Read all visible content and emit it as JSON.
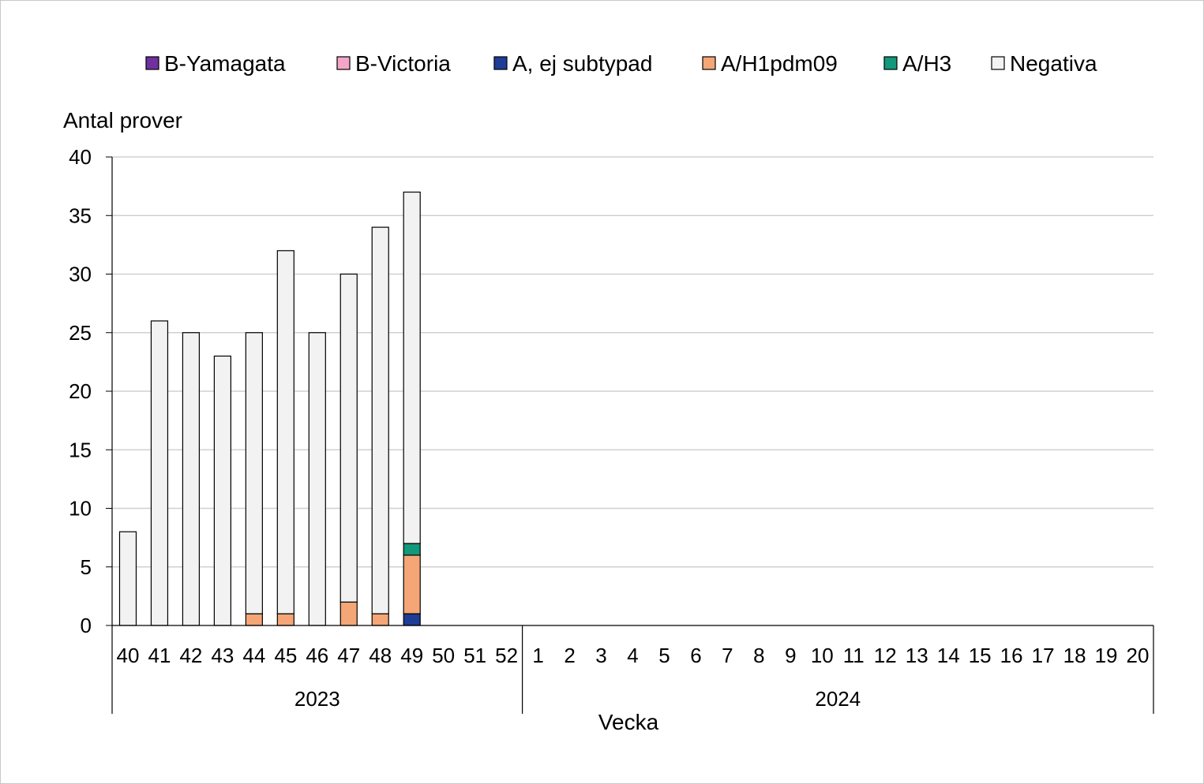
{
  "chart_data": {
    "type": "bar",
    "stacked": true,
    "ylabel": "Antal prover",
    "xlabel": "Vecka",
    "ylim": [
      0,
      40
    ],
    "yticks": [
      0,
      5,
      10,
      15,
      20,
      25,
      30,
      35,
      40
    ],
    "grid": true,
    "legend_position": "top",
    "categories": [
      "40",
      "41",
      "42",
      "43",
      "44",
      "45",
      "46",
      "47",
      "48",
      "49",
      "50",
      "51",
      "52",
      "1",
      "2",
      "3",
      "4",
      "5",
      "6",
      "7",
      "8",
      "9",
      "10",
      "11",
      "12",
      "13",
      "14",
      "15",
      "16",
      "17",
      "18",
      "19",
      "20"
    ],
    "groups": [
      {
        "label": "2023",
        "count": 13
      },
      {
        "label": "2024",
        "count": 20
      }
    ],
    "series": [
      {
        "name": "B-Yamagata",
        "color": "#7030a0",
        "values": [
          0,
          0,
          0,
          0,
          0,
          0,
          0,
          0,
          0,
          0,
          null,
          null,
          null,
          null,
          null,
          null,
          null,
          null,
          null,
          null,
          null,
          null,
          null,
          null,
          null,
          null,
          null,
          null,
          null,
          null,
          null,
          null,
          null
        ]
      },
      {
        "name": "B-Victoria",
        "color": "#f4a6c8",
        "values": [
          0,
          0,
          0,
          0,
          0,
          0,
          0,
          0,
          0,
          0,
          null,
          null,
          null,
          null,
          null,
          null,
          null,
          null,
          null,
          null,
          null,
          null,
          null,
          null,
          null,
          null,
          null,
          null,
          null,
          null,
          null,
          null,
          null
        ]
      },
      {
        "name": "A, ej subtypad",
        "color": "#1f3c96",
        "values": [
          0,
          0,
          0,
          0,
          0,
          0,
          0,
          0,
          0,
          1,
          null,
          null,
          null,
          null,
          null,
          null,
          null,
          null,
          null,
          null,
          null,
          null,
          null,
          null,
          null,
          null,
          null,
          null,
          null,
          null,
          null,
          null,
          null
        ]
      },
      {
        "name": "A/H1pdm09",
        "color": "#f4a676",
        "values": [
          0,
          0,
          0,
          0,
          1,
          1,
          0,
          2,
          1,
          5,
          null,
          null,
          null,
          null,
          null,
          null,
          null,
          null,
          null,
          null,
          null,
          null,
          null,
          null,
          null,
          null,
          null,
          null,
          null,
          null,
          null,
          null,
          null
        ]
      },
      {
        "name": "A/H3",
        "color": "#12987a",
        "values": [
          0,
          0,
          0,
          0,
          0,
          0,
          0,
          0,
          0,
          1,
          null,
          null,
          null,
          null,
          null,
          null,
          null,
          null,
          null,
          null,
          null,
          null,
          null,
          null,
          null,
          null,
          null,
          null,
          null,
          null,
          null,
          null,
          null
        ]
      },
      {
        "name": "Negativa",
        "color": "#f2f2f2",
        "values": [
          8,
          26,
          25,
          23,
          24,
          31,
          25,
          28,
          33,
          30,
          null,
          null,
          null,
          null,
          null,
          null,
          null,
          null,
          null,
          null,
          null,
          null,
          null,
          null,
          null,
          null,
          null,
          null,
          null,
          null,
          null,
          null,
          null
        ]
      }
    ]
  }
}
